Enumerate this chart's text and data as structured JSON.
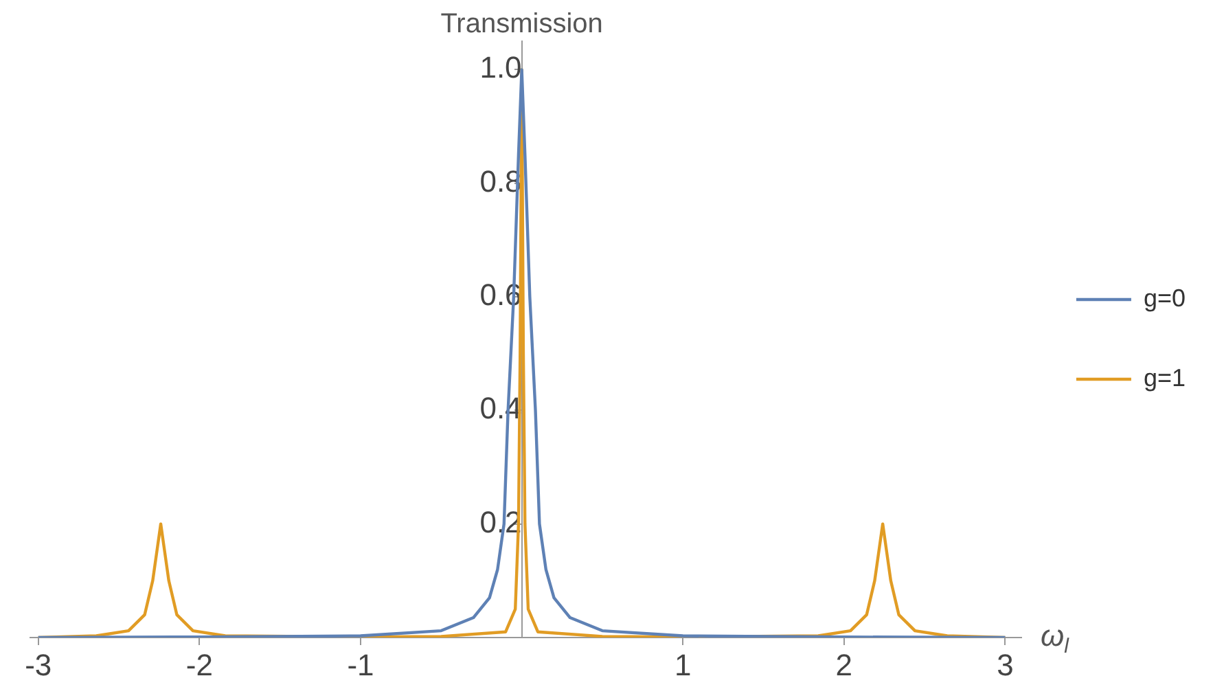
{
  "chart_data": {
    "type": "line",
    "ylabel": "Transmission",
    "xlabel": "ω$_{l}$",
    "xlim": [
      -3.05,
      3.1
    ],
    "ylim": [
      0,
      1.05
    ],
    "xticks": [
      -3,
      -2,
      -1,
      1,
      2,
      3
    ],
    "yticks": [
      {
        "value": 0.2,
        "label": "0.2"
      },
      {
        "value": 0.4,
        "label": "0.4"
      },
      {
        "value": 0.6,
        "label": "0.6"
      },
      {
        "value": 0.8,
        "label": "0.8"
      },
      {
        "value": 1,
        "label": "1.0"
      }
    ],
    "grid": false,
    "legend": "right",
    "marker": "none",
    "line_style": "solid",
    "series": [
      {
        "name": "g=0",
        "color": "#5e81b5",
        "x": [
          -3,
          -2,
          -1,
          -0.5,
          -0.3,
          -0.2,
          -0.15,
          -0.11,
          -0.085,
          -0.05,
          -0.02,
          0,
          0.02,
          0.05,
          0.085,
          0.11,
          0.15,
          0.2,
          0.3,
          0.5,
          1,
          2,
          3
        ],
        "values": [
          0,
          0.001,
          0.003,
          0.012,
          0.035,
          0.07,
          0.12,
          0.2,
          0.4,
          0.6,
          0.85,
          1.0,
          0.85,
          0.6,
          0.4,
          0.2,
          0.12,
          0.07,
          0.035,
          0.012,
          0.003,
          0.001,
          0
        ]
      },
      {
        "name": "g=1",
        "color": "#e19c24",
        "x": [
          -3,
          -2.64,
          -2.44,
          -2.34,
          -2.29,
          -2.26,
          -2.24,
          -2.22,
          -2.19,
          -2.14,
          -2.04,
          -1.84,
          -1,
          -0.5,
          -0.1,
          -0.04,
          -0.02,
          -0.01,
          0,
          0.01,
          0.02,
          0.04,
          0.1,
          0.5,
          1,
          1.84,
          2.04,
          2.14,
          2.19,
          2.22,
          2.24,
          2.26,
          2.29,
          2.34,
          2.44,
          2.64,
          3
        ],
        "values": [
          0,
          0.003,
          0.012,
          0.04,
          0.1,
          0.16,
          0.2,
          0.16,
          0.1,
          0.04,
          0.012,
          0.003,
          0.001,
          0.002,
          0.01,
          0.05,
          0.2,
          0.5,
          1.0,
          0.5,
          0.2,
          0.05,
          0.01,
          0.002,
          0.001,
          0.003,
          0.012,
          0.04,
          0.1,
          0.16,
          0.2,
          0.16,
          0.1,
          0.04,
          0.012,
          0.003,
          0
        ]
      }
    ]
  }
}
